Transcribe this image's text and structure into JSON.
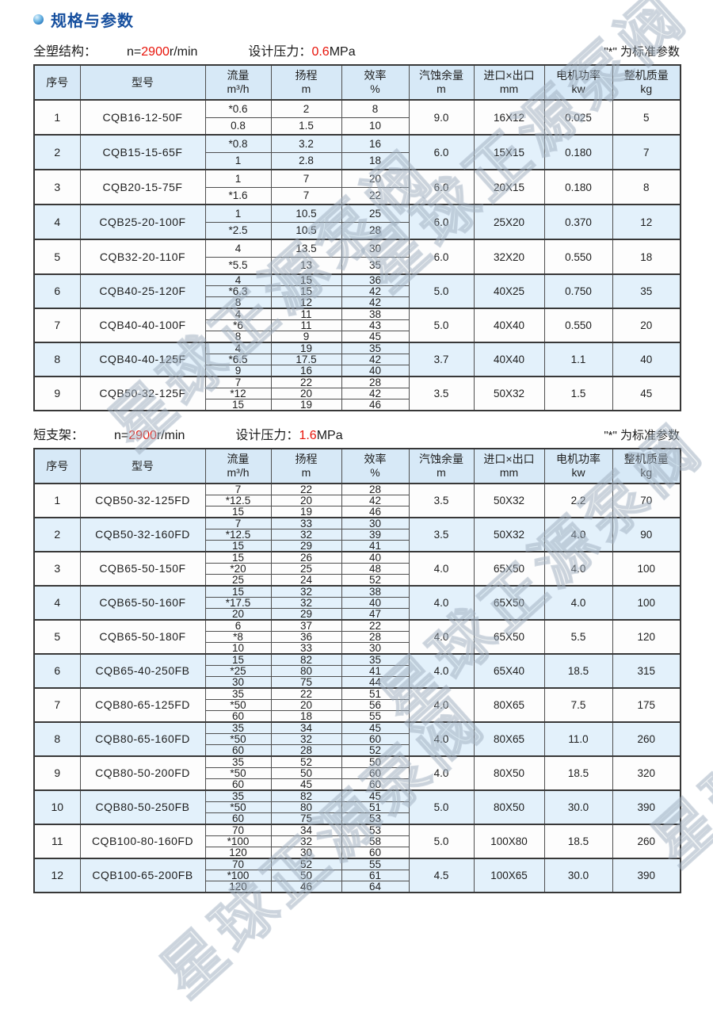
{
  "header": {
    "title": "规格与参数"
  },
  "columns": [
    {
      "key": "no",
      "label": "序号",
      "unit": ""
    },
    {
      "key": "model",
      "label": "型号",
      "unit": ""
    },
    {
      "key": "flow",
      "label": "流量",
      "unit": "m³/h"
    },
    {
      "key": "head",
      "label": "扬程",
      "unit": "m"
    },
    {
      "key": "efficiency",
      "label": "效率",
      "unit": "%"
    },
    {
      "key": "npsh",
      "label": "汽蚀余量",
      "unit": "m"
    },
    {
      "key": "ports",
      "label": "进口×出口",
      "unit": "mm"
    },
    {
      "key": "power",
      "label": "电机功率",
      "unit": "kw"
    },
    {
      "key": "weight",
      "label": "整机质量",
      "unit": "kg"
    }
  ],
  "tables": [
    {
      "section": {
        "name": "全塑结构：",
        "speed_label": "n=",
        "speed_value": "2900",
        "speed_unit": "r/min",
        "pressure_label": "设计压力：",
        "pressure_value": "0.6",
        "pressure_unit": "MPa",
        "note": "\"*\" 为标准参数"
      },
      "rows": [
        {
          "no": "1",
          "model": "CQB16-12-50F",
          "sub": [
            [
              "*0.6",
              "2",
              "8"
            ],
            [
              "0.8",
              "1.5",
              "10"
            ]
          ],
          "npsh": "9.0",
          "ports": "16X12",
          "power": "0.025",
          "weight": "5"
        },
        {
          "no": "2",
          "model": "CQB15-15-65F",
          "sub": [
            [
              "*0.8",
              "3.2",
              "16"
            ],
            [
              "1",
              "2.8",
              "18"
            ]
          ],
          "npsh": "6.0",
          "ports": "15X15",
          "power": "0.180",
          "weight": "7"
        },
        {
          "no": "3",
          "model": "CQB20-15-75F",
          "sub": [
            [
              "1",
              "7",
              "20"
            ],
            [
              "*1.6",
              "7",
              "22"
            ]
          ],
          "npsh": "6.0",
          "ports": "20X15",
          "power": "0.180",
          "weight": "8"
        },
        {
          "no": "4",
          "model": "CQB25-20-100F",
          "sub": [
            [
              "1",
              "10.5",
              "25"
            ],
            [
              "*2.5",
              "10.5",
              "28"
            ]
          ],
          "npsh": "6.0",
          "ports": "25X20",
          "power": "0.370",
          "weight": "12"
        },
        {
          "no": "5",
          "model": "CQB32-20-110F",
          "sub": [
            [
              "4",
              "13.5",
              "30"
            ],
            [
              "*5.5",
              "13",
              "35"
            ]
          ],
          "npsh": "6.0",
          "ports": "32X20",
          "power": "0.550",
          "weight": "18"
        },
        {
          "no": "6",
          "model": "CQB40-25-120F",
          "sub": [
            [
              "4",
              "15",
              "36"
            ],
            [
              "*6.3",
              "15",
              "42"
            ],
            [
              "8",
              "12",
              "42"
            ]
          ],
          "npsh": "5.0",
          "ports": "40X25",
          "power": "0.750",
          "weight": "35"
        },
        {
          "no": "7",
          "model": "CQB40-40-100F",
          "sub": [
            [
              "4",
              "11",
              "38"
            ],
            [
              "*6",
              "11",
              "43"
            ],
            [
              "8",
              "9",
              "45"
            ]
          ],
          "npsh": "5.0",
          "ports": "40X40",
          "power": "0.550",
          "weight": "20"
        },
        {
          "no": "8",
          "model": "CQB40-40-125F",
          "sub": [
            [
              "4",
              "19",
              "35"
            ],
            [
              "*6.5",
              "17.5",
              "42"
            ],
            [
              "9",
              "16",
              "40"
            ]
          ],
          "npsh": "3.7",
          "ports": "40X40",
          "power": "1.1",
          "weight": "40"
        },
        {
          "no": "9",
          "model": "CQB50-32-125F",
          "sub": [
            [
              "7",
              "22",
              "28"
            ],
            [
              "*12",
              "20",
              "42"
            ],
            [
              "15",
              "19",
              "46"
            ]
          ],
          "npsh": "3.5",
          "ports": "50X32",
          "power": "1.5",
          "weight": "45"
        }
      ]
    },
    {
      "section": {
        "name": "短支架：",
        "speed_label": "n=",
        "speed_value": "2900",
        "speed_unit": "r/min",
        "pressure_label": "设计压力：",
        "pressure_value": "1.6",
        "pressure_unit": "MPa",
        "note": "\"*\" 为标准参数"
      },
      "rows": [
        {
          "no": "1",
          "model": "CQB50-32-125FD",
          "sub": [
            [
              "7",
              "22",
              "28"
            ],
            [
              "*12.5",
              "20",
              "42"
            ],
            [
              "15",
              "19",
              "46"
            ]
          ],
          "npsh": "3.5",
          "ports": "50X32",
          "power": "2.2",
          "weight": "70"
        },
        {
          "no": "2",
          "model": "CQB50-32-160FD",
          "sub": [
            [
              "7",
              "33",
              "30"
            ],
            [
              "*12.5",
              "32",
              "39"
            ],
            [
              "15",
              "29",
              "41"
            ]
          ],
          "npsh": "3.5",
          "ports": "50X32",
          "power": "4.0",
          "weight": "90"
        },
        {
          "no": "3",
          "model": "CQB65-50-150F",
          "sub": [
            [
              "15",
              "26",
              "40"
            ],
            [
              "*20",
              "25",
              "48"
            ],
            [
              "25",
              "24",
              "52"
            ]
          ],
          "npsh": "4.0",
          "ports": "65X50",
          "power": "4.0",
          "weight": "100"
        },
        {
          "no": "4",
          "model": "CQB65-50-160F",
          "sub": [
            [
              "15",
              "32",
              "38"
            ],
            [
              "*17.5",
              "32",
              "40"
            ],
            [
              "20",
              "29",
              "47"
            ]
          ],
          "npsh": "4.0",
          "ports": "65X50",
          "power": "4.0",
          "weight": "100"
        },
        {
          "no": "5",
          "model": "CQB65-50-180F",
          "sub": [
            [
              "6",
              "37",
              "22"
            ],
            [
              "*8",
              "36",
              "28"
            ],
            [
              "10",
              "33",
              "30"
            ]
          ],
          "npsh": "4.0",
          "ports": "65X50",
          "power": "5.5",
          "weight": "120"
        },
        {
          "no": "6",
          "model": "CQB65-40-250FB",
          "sub": [
            [
              "15",
              "82",
              "35"
            ],
            [
              "*25",
              "80",
              "41"
            ],
            [
              "30",
              "75",
              "44"
            ]
          ],
          "npsh": "4.0",
          "ports": "65X40",
          "power": "18.5",
          "weight": "315"
        },
        {
          "no": "7",
          "model": "CQB80-65-125FD",
          "sub": [
            [
              "35",
              "22",
              "51"
            ],
            [
              "*50",
              "20",
              "56"
            ],
            [
              "60",
              "18",
              "55"
            ]
          ],
          "npsh": "4.0",
          "ports": "80X65",
          "power": "7.5",
          "weight": "175"
        },
        {
          "no": "8",
          "model": "CQB80-65-160FD",
          "sub": [
            [
              "35",
              "34",
              "45"
            ],
            [
              "*50",
              "32",
              "60"
            ],
            [
              "60",
              "28",
              "52"
            ]
          ],
          "npsh": "4.0",
          "ports": "80X65",
          "power": "11.0",
          "weight": "260"
        },
        {
          "no": "9",
          "model": "CQB80-50-200FD",
          "sub": [
            [
              "35",
              "52",
              "50"
            ],
            [
              "*50",
              "50",
              "60"
            ],
            [
              "60",
              "45",
              "60"
            ]
          ],
          "npsh": "4.0",
          "ports": "80X50",
          "power": "18.5",
          "weight": "320"
        },
        {
          "no": "10",
          "model": "CQB80-50-250FB",
          "sub": [
            [
              "35",
              "82",
              "45"
            ],
            [
              "*50",
              "80",
              "51"
            ],
            [
              "60",
              "75",
              "53"
            ]
          ],
          "npsh": "5.0",
          "ports": "80X50",
          "power": "30.0",
          "weight": "390"
        },
        {
          "no": "11",
          "model": "CQB100-80-160FD",
          "sub": [
            [
              "70",
              "34",
              "53"
            ],
            [
              "*100",
              "32",
              "58"
            ],
            [
              "120",
              "30",
              "60"
            ]
          ],
          "npsh": "5.0",
          "ports": "100X80",
          "power": "18.5",
          "weight": "260"
        },
        {
          "no": "12",
          "model": "CQB100-65-200FB",
          "sub": [
            [
              "70",
              "52",
              "55"
            ],
            [
              "*100",
              "50",
              "61"
            ],
            [
              "120",
              "46",
              "64"
            ]
          ],
          "npsh": "4.5",
          "ports": "100X65",
          "power": "30.0",
          "weight": "390"
        }
      ]
    }
  ],
  "watermark": {
    "text": "星球正源泵阀"
  },
  "colors": {
    "accent_blue": "#164f9e",
    "highlight_red": "#e8140a",
    "table_header_bg": "#d7e9f7",
    "zebra_row_bg": "#e3f1fb",
    "border": "#4f4f4f"
  }
}
